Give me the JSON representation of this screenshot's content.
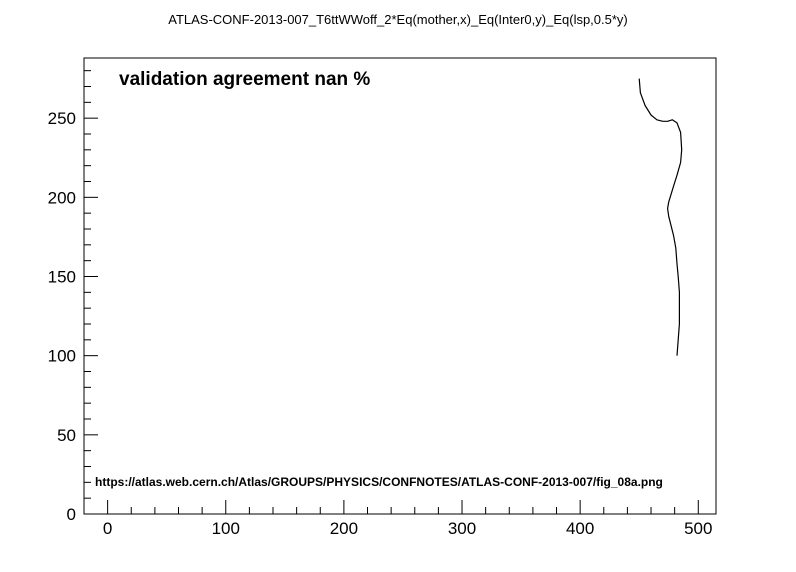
{
  "chart_data": {
    "type": "line",
    "title": "ATLAS-CONF-2013-007_T6ttWWoff_2*Eq(mother,x)_Eq(Inter0,y)_Eq(lsp,0.5*y)",
    "xlabel": "",
    "ylabel": "",
    "xlim": [
      -20,
      515
    ],
    "ylim": [
      0,
      288
    ],
    "x_ticks": [
      0,
      100,
      200,
      300,
      400,
      500
    ],
    "y_ticks": [
      0,
      50,
      100,
      150,
      200,
      250
    ],
    "grid": false,
    "annotations": {
      "agreement": "validation agreement nan %",
      "url": "https://atlas.web.cern.ch/Atlas/GROUPS/PHYSICS/CONFNOTES/ATLAS-CONF-2013-007/fig_08a.png"
    },
    "series": [
      {
        "color": "#000000",
        "x": [
          450,
          451,
          455,
          460,
          465,
          470,
          474,
          478,
          482,
          485,
          486,
          485,
          482,
          479,
          477,
          475,
          474,
          475,
          477,
          479,
          481,
          482,
          483,
          484,
          484,
          484,
          483,
          482
        ],
        "y": [
          275,
          266,
          258,
          252,
          249,
          248,
          248,
          249,
          247,
          241,
          230,
          222,
          214,
          207,
          202,
          197,
          193,
          188,
          182,
          176,
          168,
          158,
          150,
          140,
          130,
          120,
          110,
          100
        ]
      }
    ]
  }
}
